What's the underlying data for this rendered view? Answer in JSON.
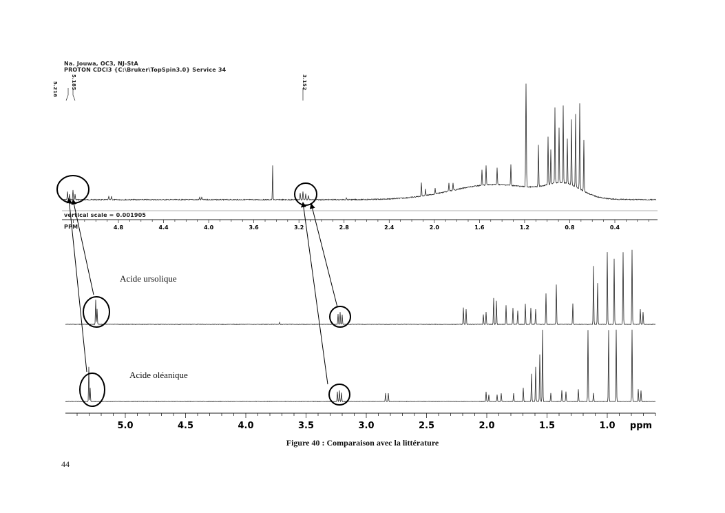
{
  "header": {
    "line1": "Na. Jouwa, OC3, NJ-StA",
    "line2": "PROTON CDCl3 {C:\\Bruker\\TopSpin3.0} Service 34",
    "peak_labels_left": [
      "5.216",
      "5.185"
    ],
    "peak_label_right": "3.152",
    "vertical_scale": "vertical scale = 0.001905"
  },
  "top_axis": {
    "unit": "PPM",
    "ticks": [
      "4.8",
      "4.4",
      "4.0",
      "3.6",
      "3.2",
      "2.8",
      "2.4",
      "2.0",
      "1.6",
      "1.2",
      "0.8",
      "0.4"
    ]
  },
  "spectra_labels": {
    "ursolic": "Acide ursolique",
    "oleanolic": "Acide oléanique"
  },
  "bottom_axis": {
    "unit": "ppm",
    "ticks": [
      "5.0",
      "4.5",
      "4.0",
      "3.5",
      "3.0",
      "2.5",
      "2.0",
      "1.5",
      "1.0"
    ]
  },
  "caption": "Figure 40 : Comparaison avec la littérature",
  "page_number": "44"
}
